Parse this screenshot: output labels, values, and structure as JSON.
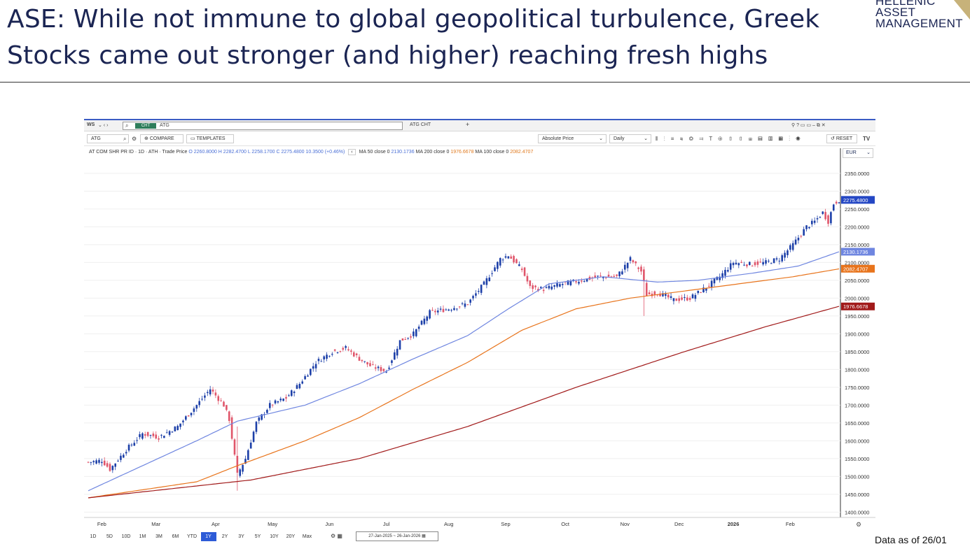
{
  "slide": {
    "title": "ASE: While not immune to global geopolitical turbulence, Greek Stocks came out stronger (and higher) reaching fresh highs",
    "logo_lines": [
      "HELLENIC",
      "ASSET",
      "MANAGEMENT"
    ],
    "footer": "Data as of 26/01"
  },
  "terminal": {
    "tab_ws": "WS",
    "cht_label": "CHT",
    "ticker_input": "ATG",
    "tab_name": "ATG CHT",
    "ticker_box": "ATG",
    "compare_label": "COMPARE",
    "templates_label": "TEMPLATES",
    "price_mode": "Absolute Price",
    "frequency": "Daily",
    "reset_label": "RESET",
    "currency": "EUR",
    "info_line": "AT COM SHR PR ID · 1D · ATH · Trade Price",
    "ohlc": "O 2260.8000  H 2282.4700  L 2258.1700  C 2275.4800  10.3500 (+0.46%)",
    "ma50_text": "MA 50 close 0",
    "ma50_val": "2130.1736",
    "ma200_text": "MA 200 close 0",
    "ma200_val": "1976.6678",
    "ma100_text": "MA 100 close 0",
    "ma100_val": "2082.4707",
    "ranges": [
      "1D",
      "5D",
      "10D",
      "1M",
      "3M",
      "6M",
      "YTD",
      "1Y",
      "2Y",
      "3Y",
      "5Y",
      "10Y",
      "20Y",
      "Max"
    ],
    "active_range": "1Y",
    "date_range": "27-Jan-2025  ~  26-Jan-2026"
  },
  "colors": {
    "up": "#1c3fa8",
    "down": "#e0556a",
    "ma50": "#6f86e0",
    "ma100": "#e8741c",
    "ma200": "#a11a1a",
    "accent": "#2d5bd7"
  },
  "chart_data": {
    "type": "candlestick",
    "y_ticks": [
      1400,
      1450,
      1500,
      1550,
      1600,
      1650,
      1700,
      1750,
      1800,
      1850,
      1900,
      1950,
      2000,
      2050,
      2100,
      2150,
      2200,
      2250,
      2300,
      2350
    ],
    "ylim": [
      1385,
      2385
    ],
    "x_months": [
      "Feb",
      "Mar",
      "Apr",
      "May",
      "Jun",
      "Jul",
      "Aug",
      "Sep",
      "Oct",
      "Nov",
      "Dec",
      "2026",
      "Feb"
    ],
    "last_price": 2275.48,
    "price_anchor": [
      [
        0,
        1540
      ],
      [
        5,
        1545
      ],
      [
        8,
        1520
      ],
      [
        14,
        1575
      ],
      [
        20,
        1620
      ],
      [
        26,
        1610
      ],
      [
        33,
        1640
      ],
      [
        40,
        1700
      ],
      [
        45,
        1745
      ],
      [
        50,
        1700
      ],
      [
        52,
        1660
      ],
      [
        55,
        1505
      ],
      [
        58,
        1550
      ],
      [
        62,
        1650
      ],
      [
        67,
        1700
      ],
      [
        73,
        1720
      ],
      [
        78,
        1760
      ],
      [
        84,
        1820
      ],
      [
        90,
        1850
      ],
      [
        95,
        1860
      ],
      [
        100,
        1830
      ],
      [
        104,
        1810
      ],
      [
        110,
        1795
      ],
      [
        115,
        1880
      ],
      [
        120,
        1900
      ],
      [
        126,
        1960
      ],
      [
        133,
        1970
      ],
      [
        140,
        1985
      ],
      [
        146,
        2040
      ],
      [
        152,
        2110
      ],
      [
        155,
        2120
      ],
      [
        160,
        2080
      ],
      [
        163,
        2030
      ],
      [
        168,
        2025
      ],
      [
        175,
        2040
      ],
      [
        182,
        2050
      ],
      [
        188,
        2060
      ],
      [
        195,
        2060
      ],
      [
        200,
        2110
      ],
      [
        204,
        2075
      ],
      [
        206,
        2010
      ],
      [
        210,
        2015
      ],
      [
        216,
        1995
      ],
      [
        222,
        2000
      ],
      [
        228,
        2030
      ],
      [
        233,
        2060
      ],
      [
        238,
        2100
      ],
      [
        244,
        2095
      ],
      [
        250,
        2100
      ],
      [
        255,
        2110
      ],
      [
        260,
        2150
      ],
      [
        265,
        2200
      ],
      [
        268,
        2215
      ],
      [
        271,
        2240
      ],
      [
        273,
        2215
      ],
      [
        275,
        2265
      ],
      [
        277,
        2275.48
      ]
    ],
    "ma_series": [
      {
        "name": "MA 50 close 0",
        "key": "ma50",
        "last": 2130.1736,
        "points": [
          [
            0,
            1460
          ],
          [
            40,
            1600
          ],
          [
            55,
            1655
          ],
          [
            80,
            1700
          ],
          [
            100,
            1760
          ],
          [
            120,
            1830
          ],
          [
            140,
            1895
          ],
          [
            155,
            1970
          ],
          [
            170,
            2040
          ],
          [
            190,
            2060
          ],
          [
            210,
            2045
          ],
          [
            225,
            2050
          ],
          [
            245,
            2070
          ],
          [
            262,
            2090
          ],
          [
            277,
            2130
          ]
        ]
      },
      {
        "name": "MA 100 close 0",
        "key": "ma100",
        "last": 2082.4707,
        "points": [
          [
            0,
            1440
          ],
          [
            40,
            1485
          ],
          [
            55,
            1530
          ],
          [
            80,
            1600
          ],
          [
            100,
            1665
          ],
          [
            120,
            1745
          ],
          [
            140,
            1820
          ],
          [
            160,
            1910
          ],
          [
            180,
            1970
          ],
          [
            200,
            2000
          ],
          [
            220,
            2020
          ],
          [
            240,
            2040
          ],
          [
            260,
            2060
          ],
          [
            277,
            2082
          ]
        ]
      },
      {
        "name": "MA 200 close 0",
        "key": "ma200",
        "last": 1976.6678,
        "points": [
          [
            0,
            1440
          ],
          [
            60,
            1490
          ],
          [
            100,
            1550
          ],
          [
            140,
            1640
          ],
          [
            180,
            1750
          ],
          [
            220,
            1850
          ],
          [
            250,
            1920
          ],
          [
            277,
            1977
          ]
        ]
      }
    ]
  }
}
